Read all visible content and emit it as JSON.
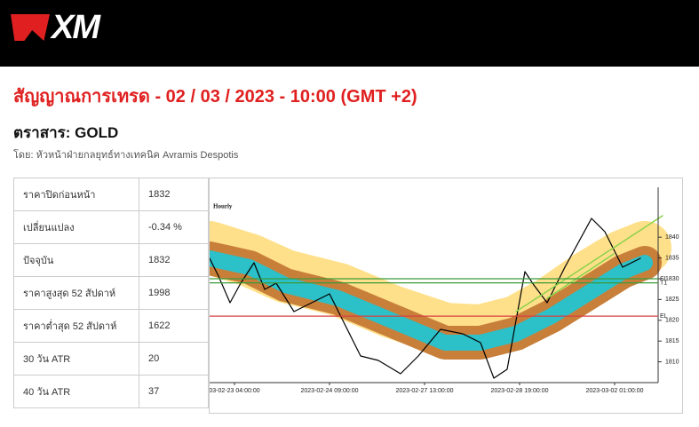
{
  "header": {
    "logo": "XM"
  },
  "title": "สัญญาณการเทรด - 02 / 03 / 2023 - 10:00 (GMT +2)",
  "instrument": "ตราสาร: GOLD",
  "byline": "โดย: หัวหน้าฝ่ายกลยุทธ์ทางเทคนิค Avramis Despotis",
  "table": {
    "rows": [
      [
        "ราคาปิดก่อนหน้า",
        "1832"
      ],
      [
        "เปลี่ยนแปลง",
        "-0.34 %"
      ],
      [
        "ปัจจุบัน",
        "1832"
      ],
      [
        "ราคาสูงสุด 52 สัปดาห์",
        "1998"
      ],
      [
        "ราคาต่ำสุด 52 สัปดาห์",
        "1622"
      ],
      [
        "30 วัน ATR",
        "20"
      ],
      [
        "40 วัน ATR",
        "37"
      ]
    ]
  },
  "chart": {
    "label": "Hourly",
    "ylim": [
      1805,
      1852
    ],
    "yticks": [
      1810,
      1815,
      1820,
      1825,
      1830,
      1835,
      1840
    ],
    "xticks": [
      "03-02-23 04:00:00",
      "2023-02-24 09:00:00",
      "2023-02-27 13:00:00",
      "2023-02-28 19:00:00",
      "2023-03-02 01:00:00"
    ],
    "levels": [
      {
        "label": "SL",
        "value": 1830,
        "color": "#3a9a3a"
      },
      {
        "label": "T1",
        "value": 1829,
        "color": "#3a9a3a"
      },
      {
        "label": "EL",
        "value": 1821,
        "color": "#d84040"
      }
    ]
  }
}
